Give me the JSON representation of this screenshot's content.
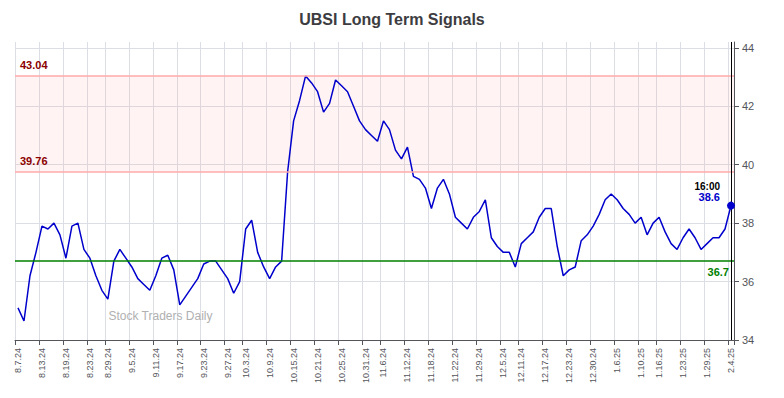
{
  "chart_data": {
    "type": "line",
    "title": "UBSI Long Term Signals",
    "categories": [
      "8.7.24",
      null,
      null,
      null,
      "8.13.24",
      null,
      null,
      null,
      "8.19.24",
      null,
      null,
      null,
      "8.23.24",
      null,
      null,
      "8.29.24",
      null,
      null,
      null,
      "9.5.24",
      null,
      null,
      null,
      "9.11.24",
      null,
      null,
      null,
      "9.17.24",
      null,
      null,
      null,
      "9.23.24",
      null,
      null,
      null,
      "9.27.24",
      null,
      null,
      "10.3.24",
      null,
      null,
      null,
      "10.9.24",
      null,
      null,
      null,
      "10.15.24",
      null,
      null,
      null,
      "10.21.24",
      null,
      null,
      null,
      "10.25.24",
      null,
      null,
      null,
      "10.31.24",
      null,
      null,
      "11.6.24",
      null,
      null,
      null,
      "11.12.24",
      null,
      null,
      null,
      "11.18.24",
      null,
      null,
      null,
      "11.22.24",
      null,
      null,
      null,
      "11.29.24",
      null,
      null,
      null,
      "12.5.24",
      null,
      null,
      "12.11.24",
      null,
      null,
      null,
      "12.17.24",
      null,
      null,
      null,
      "12.23.24",
      null,
      null,
      null,
      "12.30.24",
      null,
      null,
      null,
      "1.6.25",
      null,
      null,
      null,
      "1.10.25",
      null,
      null,
      "1.16.25",
      null,
      null,
      null,
      "1.23.25",
      null,
      null,
      null,
      "1.29.25",
      null,
      null,
      null,
      "2.4.25"
    ],
    "values": [
      35.1,
      34.65,
      36.2,
      37.0,
      37.9,
      37.8,
      38.0,
      37.6,
      36.8,
      37.9,
      38.0,
      37.1,
      36.8,
      36.2,
      35.7,
      35.4,
      36.7,
      37.1,
      36.8,
      36.5,
      36.1,
      35.9,
      35.7,
      36.2,
      36.8,
      36.9,
      36.4,
      35.2,
      35.5,
      35.8,
      36.1,
      36.6,
      36.7,
      36.7,
      36.4,
      36.1,
      35.6,
      36.0,
      37.8,
      38.1,
      37.0,
      36.5,
      36.1,
      36.5,
      36.7,
      39.76,
      41.5,
      42.2,
      43.04,
      42.8,
      42.5,
      41.8,
      42.1,
      42.9,
      42.7,
      42.5,
      42.0,
      41.5,
      41.2,
      41.0,
      40.8,
      41.5,
      41.2,
      40.5,
      40.2,
      40.6,
      39.6,
      39.5,
      39.2,
      38.5,
      39.2,
      39.5,
      39.0,
      38.2,
      38.0,
      37.8,
      38.2,
      38.4,
      38.8,
      37.5,
      37.2,
      37.0,
      37.0,
      36.5,
      37.3,
      37.5,
      37.7,
      38.2,
      38.5,
      38.5,
      37.2,
      36.2,
      36.4,
      36.5,
      37.4,
      37.6,
      37.9,
      38.3,
      38.8,
      39.0,
      38.8,
      38.5,
      38.3,
      38.0,
      38.2,
      37.6,
      38.0,
      38.2,
      37.7,
      37.3,
      37.1,
      37.5,
      37.8,
      37.5,
      37.1,
      37.3,
      37.5,
      37.5,
      37.8,
      38.6
    ],
    "color": "#0000cc",
    "ylim": [
      34,
      44.2
    ],
    "yticks": [
      34,
      36,
      38,
      40,
      42,
      44
    ],
    "grid": true,
    "reference_lines": [
      {
        "value": 36.7,
        "color": "green",
        "annotation": {
          "text": "36.7",
          "color": "green"
        }
      },
      {
        "value": 39.76,
        "color": "#ffaaaa",
        "annotation": {
          "text": "39.76",
          "color": "darkred"
        }
      },
      {
        "value": 43.04,
        "color": "#ffaaaa",
        "annotation": {
          "text": "43.04",
          "color": "darkred"
        }
      }
    ],
    "band": {
      "from": 39.76,
      "to": 43.04,
      "color": "#ff9999"
    },
    "last_point": {
      "time_label": "16:00",
      "value": 38.6
    },
    "watermark": "Stock Traders Daily"
  }
}
